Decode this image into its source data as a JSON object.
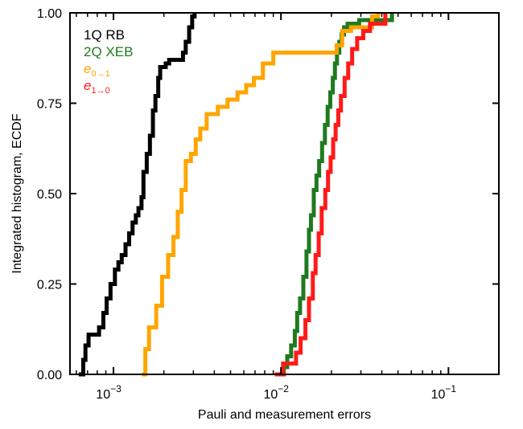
{
  "chart_data": {
    "type": "line",
    "subtype": "ecdf-step",
    "xlabel": "Pauli and measurement errors",
    "ylabel": "Integrated histogram, ECDF",
    "xscale": "log",
    "xlim": [
      0.00055,
      0.2
    ],
    "ylim": [
      0,
      1
    ],
    "grid": false,
    "legend_placement": "top-left",
    "x_tick_labels": [
      {
        "value": 0.001,
        "base": "10",
        "exp": "−3"
      },
      {
        "value": 0.01,
        "base": "10",
        "exp": "−2"
      },
      {
        "value": 0.1,
        "base": "10",
        "exp": "−1"
      }
    ],
    "y_ticks": [
      0,
      0.25,
      0.5,
      0.75,
      1.0
    ],
    "y_tick_labels": [
      "0.00",
      "0.25",
      "0.50",
      "0.75",
      "1.00"
    ],
    "series": [
      {
        "name": "1Q RB",
        "color": "#000000",
        "points": [
          [
            0.00062,
            0.0
          ],
          [
            0.00066,
            0.04
          ],
          [
            0.00068,
            0.08
          ],
          [
            0.00071,
            0.11
          ],
          [
            0.00082,
            0.13
          ],
          [
            0.00087,
            0.17
          ],
          [
            0.00091,
            0.21
          ],
          [
            0.00096,
            0.25
          ],
          [
            0.00102,
            0.29
          ],
          [
            0.00107,
            0.31
          ],
          [
            0.00112,
            0.33
          ],
          [
            0.00118,
            0.36
          ],
          [
            0.00124,
            0.39
          ],
          [
            0.0013,
            0.42
          ],
          [
            0.00136,
            0.44
          ],
          [
            0.00141,
            0.46
          ],
          [
            0.00147,
            0.49
          ],
          [
            0.00151,
            0.56
          ],
          [
            0.00158,
            0.61
          ],
          [
            0.00165,
            0.66
          ],
          [
            0.00172,
            0.73
          ],
          [
            0.00178,
            0.77
          ],
          [
            0.00185,
            0.82
          ],
          [
            0.0019,
            0.85
          ],
          [
            0.00205,
            0.86
          ],
          [
            0.00215,
            0.87
          ],
          [
            0.0025,
            0.87
          ],
          [
            0.0026,
            0.89
          ],
          [
            0.0027,
            0.92
          ],
          [
            0.00283,
            0.96
          ],
          [
            0.00295,
            0.99
          ],
          [
            0.00305,
            1.0
          ]
        ]
      },
      {
        "name": "2Q XEB",
        "color": "#1f7a1f",
        "points": [
          [
            0.0098,
            0.0
          ],
          [
            0.0104,
            0.02
          ],
          [
            0.0109,
            0.05
          ],
          [
            0.0115,
            0.08
          ],
          [
            0.0121,
            0.12
          ],
          [
            0.0125,
            0.17
          ],
          [
            0.013,
            0.21
          ],
          [
            0.0136,
            0.27
          ],
          [
            0.0142,
            0.34
          ],
          [
            0.0147,
            0.4
          ],
          [
            0.0151,
            0.44
          ],
          [
            0.0157,
            0.51
          ],
          [
            0.0163,
            0.55
          ],
          [
            0.0169,
            0.59
          ],
          [
            0.0176,
            0.64
          ],
          [
            0.0183,
            0.69
          ],
          [
            0.019,
            0.74
          ],
          [
            0.0197,
            0.78
          ],
          [
            0.0204,
            0.82
          ],
          [
            0.021,
            0.86
          ],
          [
            0.0216,
            0.89
          ],
          [
            0.0223,
            0.92
          ],
          [
            0.023,
            0.94
          ],
          [
            0.0238,
            0.96
          ],
          [
            0.025,
            0.97
          ],
          [
            0.0293,
            0.98
          ],
          [
            0.035,
            0.98
          ],
          [
            0.046,
            1.0
          ]
        ]
      },
      {
        "name": "e0→1",
        "color": "#ffa500",
        "points": [
          [
            0.00148,
            0.0
          ],
          [
            0.00155,
            0.07
          ],
          [
            0.00163,
            0.13
          ],
          [
            0.0018,
            0.19
          ],
          [
            0.00195,
            0.27
          ],
          [
            0.00212,
            0.33
          ],
          [
            0.00228,
            0.38
          ],
          [
            0.00242,
            0.45
          ],
          [
            0.00255,
            0.51
          ],
          [
            0.0027,
            0.59
          ],
          [
            0.0029,
            0.61
          ],
          [
            0.0031,
            0.65
          ],
          [
            0.0033,
            0.68
          ],
          [
            0.0036,
            0.72
          ],
          [
            0.0042,
            0.74
          ],
          [
            0.0048,
            0.76
          ],
          [
            0.0055,
            0.78
          ],
          [
            0.0062,
            0.8
          ],
          [
            0.0069,
            0.82
          ],
          [
            0.0078,
            0.86
          ],
          [
            0.009,
            0.89
          ],
          [
            0.0215,
            0.91
          ],
          [
            0.0232,
            0.95
          ],
          [
            0.0262,
            0.96
          ],
          [
            0.035,
            0.99
          ],
          [
            0.038,
            1.0
          ]
        ]
      },
      {
        "name": "e1→0",
        "color": "#ff1a1a",
        "points": [
          [
            0.0092,
            0.0
          ],
          [
            0.0103,
            0.03
          ],
          [
            0.0123,
            0.06
          ],
          [
            0.0131,
            0.1
          ],
          [
            0.014,
            0.15
          ],
          [
            0.0147,
            0.21
          ],
          [
            0.0155,
            0.28
          ],
          [
            0.0161,
            0.33
          ],
          [
            0.0168,
            0.39
          ],
          [
            0.0175,
            0.46
          ],
          [
            0.0184,
            0.51
          ],
          [
            0.0191,
            0.56
          ],
          [
            0.0198,
            0.6
          ],
          [
            0.0205,
            0.65
          ],
          [
            0.0212,
            0.69
          ],
          [
            0.022,
            0.73
          ],
          [
            0.0228,
            0.77
          ],
          [
            0.024,
            0.82
          ],
          [
            0.0252,
            0.86
          ],
          [
            0.0266,
            0.9
          ],
          [
            0.0285,
            0.93
          ],
          [
            0.031,
            0.95
          ],
          [
            0.034,
            0.97
          ],
          [
            0.042,
            1.0
          ]
        ]
      }
    ],
    "legend": [
      {
        "label": "1Q RB",
        "color": "#000000",
        "italic": false
      },
      {
        "label": "2Q XEB",
        "color": "#1f7a1f",
        "italic": false
      },
      {
        "label_base": "e",
        "label_sub": "0→1",
        "color": "#ffa500",
        "italic": true
      },
      {
        "label_base": "e",
        "label_sub": "1→0",
        "color": "#ff1a1a",
        "italic": true
      }
    ]
  }
}
